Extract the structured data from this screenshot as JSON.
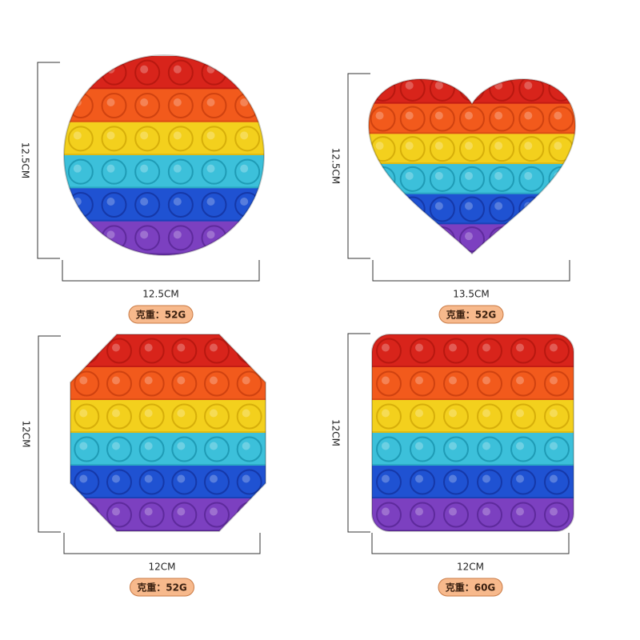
{
  "products": [
    {
      "height": "12.5CM",
      "width": "12.5CM",
      "weight": "克重：52G"
    },
    {
      "height": "12.5CM",
      "width": "13.5CM",
      "weight": "克重：52G"
    },
    {
      "height": "12CM",
      "width": "12CM",
      "weight": "克重：52G"
    },
    {
      "height": "12CM",
      "width": "12CM",
      "weight": "克重：60G"
    }
  ]
}
